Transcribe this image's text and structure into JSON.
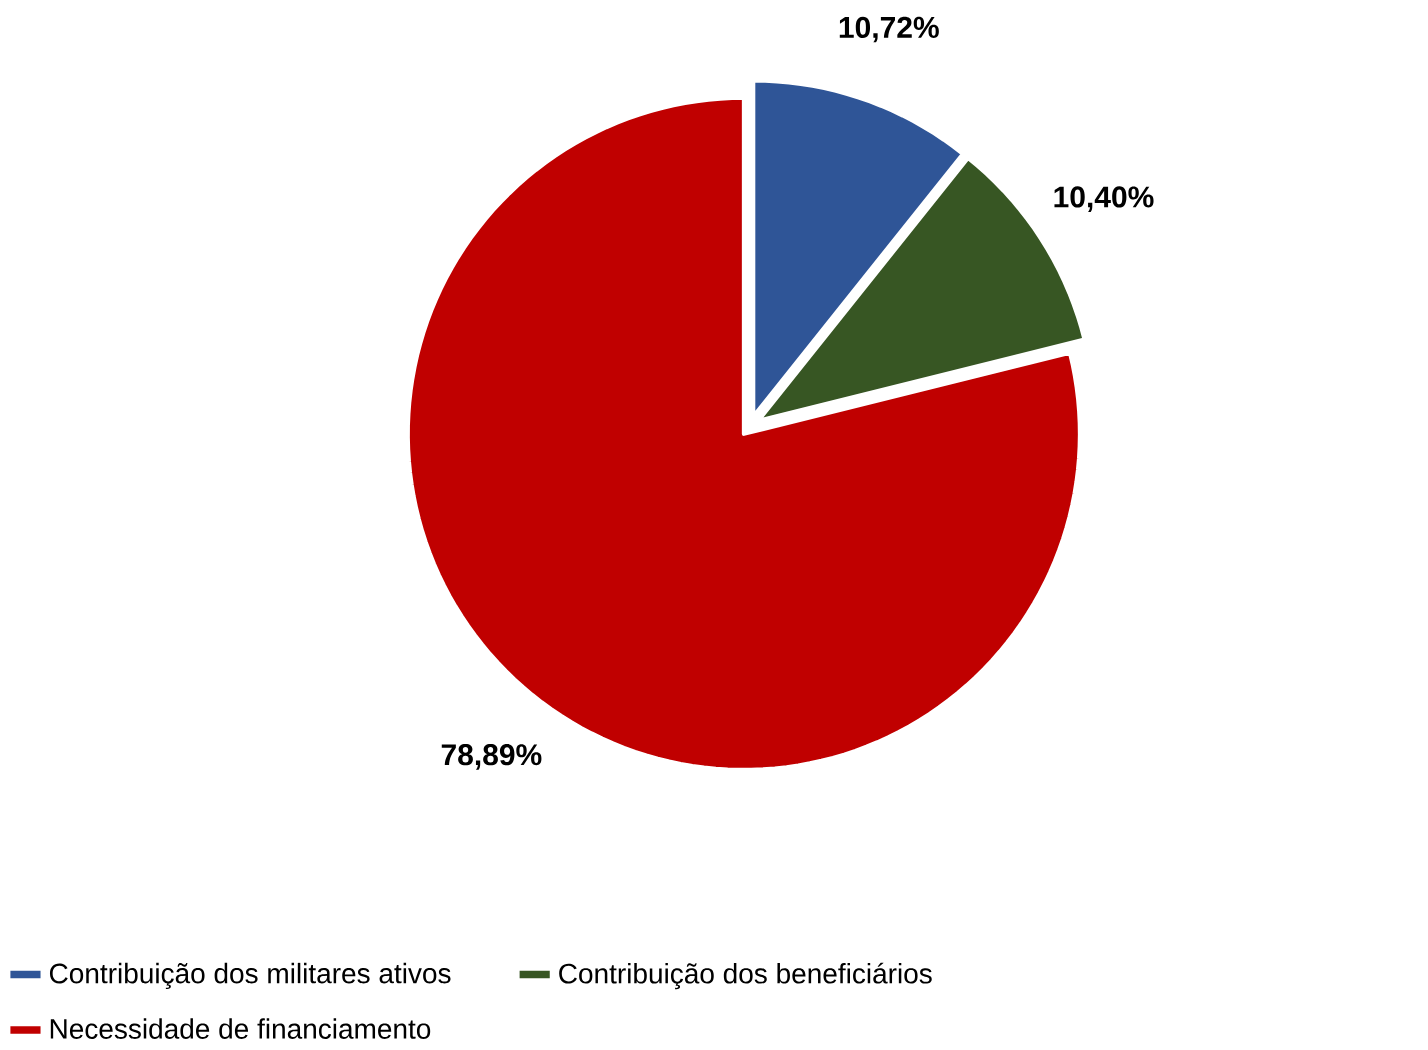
{
  "chart_data": {
    "type": "pie",
    "categories": [
      "Contribuição dos militares ativos",
      "Contribuição dos beneficiários",
      "Necessidade de financiamento"
    ],
    "values": [
      10.72,
      10.4,
      78.89
    ],
    "colors": [
      "#2f5597",
      "#375623",
      "#c00000"
    ],
    "value_labels": [
      "10,72%",
      "10,40%",
      "78,89%"
    ],
    "legend": "bottom"
  }
}
